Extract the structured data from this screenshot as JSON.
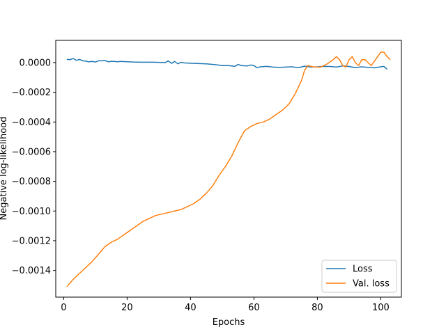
{
  "chart_data": {
    "type": "line",
    "xlabel": "Epochs",
    "ylabel": "Negative log-likelihood",
    "xlim": [
      -2.5,
      106.5
    ],
    "ylim": [
      -0.00158,
      0.00015
    ],
    "grid": false,
    "legend_placement": "bottom-right",
    "x_ticks": [
      0,
      20,
      40,
      60,
      80,
      100
    ],
    "x_tick_labels": [
      "0",
      "20",
      "40",
      "60",
      "80",
      "100"
    ],
    "y_ticks": [
      0.0,
      -0.0002,
      -0.0004,
      -0.0006,
      -0.0008,
      -0.001,
      -0.0012,
      -0.0014
    ],
    "y_tick_labels": [
      "0.0000",
      "−0.0002",
      "−0.0004",
      "−0.0006",
      "−0.0008",
      "−0.0010",
      "−0.0012",
      "−0.0014"
    ],
    "series": [
      {
        "name": "Loss",
        "color": "#1f77b4",
        "points": [
          [
            1,
            2.2e-05
          ],
          [
            2,
            2e-05
          ],
          [
            3,
            2.8e-05
          ],
          [
            4,
            1.5e-05
          ],
          [
            5,
            2.2e-05
          ],
          [
            6,
            1.2e-05
          ],
          [
            7,
            1e-05
          ],
          [
            8,
            5e-06
          ],
          [
            9,
            8e-06
          ],
          [
            10,
            4e-06
          ],
          [
            11,
            1.2e-05
          ],
          [
            12,
            1.2e-05
          ],
          [
            13,
            1.4e-05
          ],
          [
            14,
            6e-06
          ],
          [
            15,
            8e-06
          ],
          [
            16,
            8e-06
          ],
          [
            17,
            6e-06
          ],
          [
            18,
            8e-06
          ],
          [
            19,
            7e-06
          ],
          [
            20,
            6e-06
          ],
          [
            22,
            4e-06
          ],
          [
            24,
            3e-06
          ],
          [
            26,
            3e-06
          ],
          [
            28,
            3e-06
          ],
          [
            30,
            2e-06
          ],
          [
            32,
            0.0
          ],
          [
            33,
            1.2e-05
          ],
          [
            34,
            -5e-06
          ],
          [
            35,
            8e-06
          ],
          [
            36,
            -8e-06
          ],
          [
            37,
            2e-06
          ],
          [
            38,
            -2e-06
          ],
          [
            40,
            -4e-06
          ],
          [
            45,
            -8e-06
          ],
          [
            48,
            -1.4e-05
          ],
          [
            50,
            -2e-05
          ],
          [
            52,
            -2e-05
          ],
          [
            54,
            -2.5e-05
          ],
          [
            55,
            -1.2e-05
          ],
          [
            56,
            -2e-05
          ],
          [
            58,
            -2.2e-05
          ],
          [
            59,
            -1.6e-05
          ],
          [
            60,
            -2e-05
          ],
          [
            61,
            -3.5e-05
          ],
          [
            62,
            -2.8e-05
          ],
          [
            64,
            -2.5e-05
          ],
          [
            66,
            -3e-05
          ],
          [
            68,
            -3.2e-05
          ],
          [
            70,
            -3e-05
          ],
          [
            72,
            -2.8e-05
          ],
          [
            74,
            -3.4e-05
          ],
          [
            76,
            -2.4e-05
          ],
          [
            78,
            -3e-05
          ],
          [
            80,
            -2.8e-05
          ],
          [
            82,
            -2.5e-05
          ],
          [
            84,
            -2.6e-05
          ],
          [
            86,
            -3e-05
          ],
          [
            88,
            -2.2e-05
          ],
          [
            90,
            -2.6e-05
          ],
          [
            92,
            -3.4e-05
          ],
          [
            94,
            -2.8e-05
          ],
          [
            96,
            -3.2e-05
          ],
          [
            98,
            -3.5e-05
          ],
          [
            100,
            -2.8e-05
          ],
          [
            101,
            -2.5e-05
          ],
          [
            102,
            -4.5e-05
          ]
        ]
      },
      {
        "name": "Val. loss",
        "color": "#ff7f0e",
        "points": [
          [
            1,
            -0.00151
          ],
          [
            3,
            -0.00146
          ],
          [
            5,
            -0.00142
          ],
          [
            7,
            -0.00138
          ],
          [
            9,
            -0.00134
          ],
          [
            11,
            -0.00129
          ],
          [
            13,
            -0.00124
          ],
          [
            15,
            -0.00121
          ],
          [
            17,
            -0.00119
          ],
          [
            19,
            -0.00116
          ],
          [
            21,
            -0.00113
          ],
          [
            23,
            -0.0011
          ],
          [
            25,
            -0.00107
          ],
          [
            27,
            -0.00105
          ],
          [
            29,
            -0.00103
          ],
          [
            31,
            -0.00102
          ],
          [
            33,
            -0.00101
          ],
          [
            35,
            -0.001
          ],
          [
            37,
            -0.00099
          ],
          [
            39,
            -0.00097
          ],
          [
            41,
            -0.00095
          ],
          [
            43,
            -0.00092
          ],
          [
            45,
            -0.00088
          ],
          [
            47,
            -0.00083
          ],
          [
            49,
            -0.00076
          ],
          [
            51,
            -0.0007
          ],
          [
            53,
            -0.00063
          ],
          [
            55,
            -0.00054
          ],
          [
            57,
            -0.00046
          ],
          [
            59,
            -0.00043
          ],
          [
            61,
            -0.00041
          ],
          [
            63,
            -0.0004
          ],
          [
            65,
            -0.00038
          ],
          [
            67,
            -0.00035
          ],
          [
            69,
            -0.00032
          ],
          [
            71,
            -0.00028
          ],
          [
            73,
            -0.00021
          ],
          [
            75,
            -0.00012
          ],
          [
            76,
            -5e-05
          ],
          [
            77,
            -2e-05
          ],
          [
            79,
            -3e-05
          ],
          [
            81,
            -3e-05
          ],
          [
            83,
            -1e-05
          ],
          [
            85,
            2e-05
          ],
          [
            86,
            4e-05
          ],
          [
            87,
            2e-05
          ],
          [
            88,
            -2e-05
          ],
          [
            89,
            -3e-05
          ],
          [
            90,
            2e-05
          ],
          [
            91,
            4e-05
          ],
          [
            92,
            0.0
          ],
          [
            93,
            -2e-05
          ],
          [
            94,
            2e-05
          ],
          [
            95,
            2e-05
          ],
          [
            96,
            0.0
          ],
          [
            97,
            -2e-05
          ],
          [
            98,
            1e-05
          ],
          [
            99,
            4e-05
          ],
          [
            100,
            7e-05
          ],
          [
            101,
            7e-05
          ],
          [
            102,
            4e-05
          ],
          [
            103,
            2e-05
          ]
        ]
      }
    ]
  }
}
